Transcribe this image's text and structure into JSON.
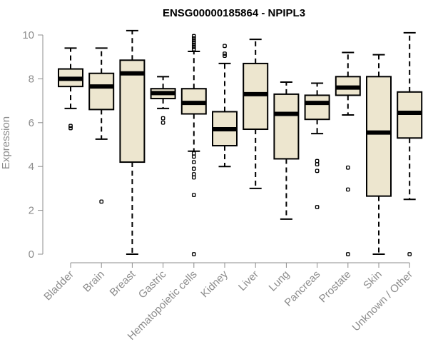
{
  "chart_data": {
    "type": "box",
    "title": "ENSG00000185864 - NPIPL3",
    "xlabel": "",
    "ylabel": "Expression",
    "ylim": [
      0,
      10
    ],
    "yticks": [
      0,
      2,
      4,
      6,
      8,
      10
    ],
    "box_fill": "#ede6cf",
    "categories": [
      "Bladder",
      "Brain",
      "Breast",
      "Gastric",
      "Hematopoietic cells",
      "Kidney",
      "Liver",
      "Lung",
      "Pancreas",
      "Prostate",
      "Skin",
      "Unknown / Other"
    ],
    "boxes": [
      {
        "name": "Bladder",
        "whisker_low": 6.65,
        "q1": 7.65,
        "median": 8.0,
        "q3": 8.45,
        "whisker_high": 9.4,
        "outliers": [
          5.75,
          5.85
        ]
      },
      {
        "name": "Brain",
        "whisker_low": 5.25,
        "q1": 6.6,
        "median": 7.65,
        "q3": 8.25,
        "whisker_high": 9.4,
        "outliers": [
          2.4
        ]
      },
      {
        "name": "Breast",
        "whisker_low": 0.0,
        "q1": 4.2,
        "median": 8.25,
        "q3": 8.85,
        "whisker_high": 10.2,
        "outliers": []
      },
      {
        "name": "Gastric",
        "whisker_low": 6.65,
        "q1": 7.1,
        "median": 7.35,
        "q3": 7.55,
        "whisker_high": 8.1,
        "outliers": [
          6.0,
          6.2
        ]
      },
      {
        "name": "Hematopoietic cells",
        "whisker_low": 4.7,
        "q1": 6.4,
        "median": 6.9,
        "q3": 7.55,
        "whisker_high": 9.25,
        "outliers": [
          0.0,
          2.7,
          3.5,
          3.65,
          3.9,
          4.2,
          4.45,
          4.6,
          9.35,
          9.45,
          9.55,
          9.65,
          9.75,
          9.85,
          9.95
        ]
      },
      {
        "name": "Kidney",
        "whisker_low": 4.0,
        "q1": 4.95,
        "median": 5.7,
        "q3": 6.5,
        "whisker_high": 8.7,
        "outliers": [
          9.05,
          9.15,
          9.5
        ]
      },
      {
        "name": "Liver",
        "whisker_low": 3.0,
        "q1": 5.7,
        "median": 7.3,
        "q3": 8.7,
        "whisker_high": 9.8,
        "outliers": []
      },
      {
        "name": "Lung",
        "whisker_low": 1.6,
        "q1": 4.35,
        "median": 6.4,
        "q3": 7.3,
        "whisker_high": 7.85,
        "outliers": []
      },
      {
        "name": "Pancreas",
        "whisker_low": 5.5,
        "q1": 6.15,
        "median": 6.9,
        "q3": 7.25,
        "whisker_high": 7.8,
        "outliers": [
          2.15,
          3.8,
          4.1,
          4.25
        ]
      },
      {
        "name": "Prostate",
        "whisker_low": 6.35,
        "q1": 7.25,
        "median": 7.6,
        "q3": 8.1,
        "whisker_high": 9.2,
        "outliers": [
          0.0,
          2.95,
          3.95
        ]
      },
      {
        "name": "Skin",
        "whisker_low": 0.0,
        "q1": 2.65,
        "median": 5.55,
        "q3": 8.1,
        "whisker_high": 9.1,
        "outliers": []
      },
      {
        "name": "Unknown / Other",
        "whisker_low": 2.5,
        "q1": 5.3,
        "median": 6.45,
        "q3": 7.4,
        "whisker_high": 10.1,
        "outliers": [
          0.0
        ]
      }
    ]
  }
}
